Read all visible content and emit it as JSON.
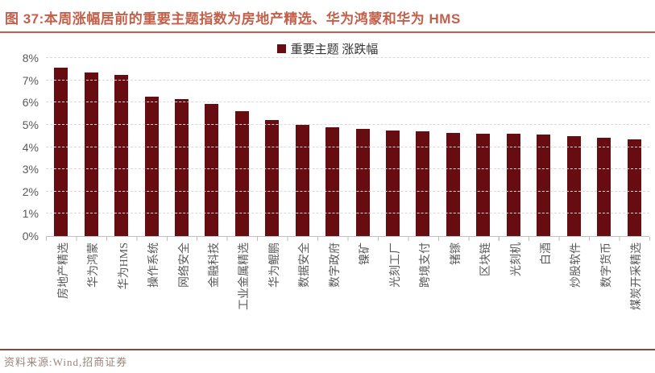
{
  "figure": {
    "title": "图 37:本周涨幅居前的重要主题指数为房地产精选、华为鸿蒙和华为 HMS",
    "source": "资料来源:Wind,招商证券"
  },
  "chart_data": {
    "type": "bar",
    "title": "图 37:本周涨幅居前的重要主题指数为房地产精选、华为鸿蒙和华为 HMS",
    "legend": "重要主题 涨跌幅",
    "legend_position": "top-center",
    "categories": [
      "房地产精选",
      "华为鸿蒙",
      "华为HMS",
      "操作系统",
      "网络安全",
      "金融科技",
      "工业金属精选",
      "华为鲲鹏",
      "数据安全",
      "数字政府",
      "镍矿",
      "光刻工厂",
      "跨境支付",
      "锗镓",
      "区块链",
      "光刻机",
      "白酒",
      "炒股软件",
      "数字货币",
      "煤炭开采精选"
    ],
    "values": [
      7.55,
      7.35,
      7.25,
      6.25,
      6.15,
      5.95,
      5.6,
      5.2,
      5.0,
      4.9,
      4.8,
      4.75,
      4.7,
      4.65,
      4.6,
      4.6,
      4.55,
      4.5,
      4.4,
      4.35
    ],
    "value_unit": "%",
    "xlabel": "",
    "ylabel": "",
    "ylim": [
      0,
      8
    ],
    "ytick_labels": [
      "8%",
      "7%",
      "6%",
      "5%",
      "4%",
      "3%",
      "2%",
      "1%",
      "0%"
    ],
    "grid": "horizontal-dashed",
    "colors": {
      "bar": "#670D12",
      "title": "#C2604A",
      "axis_text": "#595959",
      "gridline": "#D9D9D9",
      "tick": "#BFBFBF",
      "footer_rule": "#8A4638",
      "source_text": "#9A8578"
    }
  }
}
